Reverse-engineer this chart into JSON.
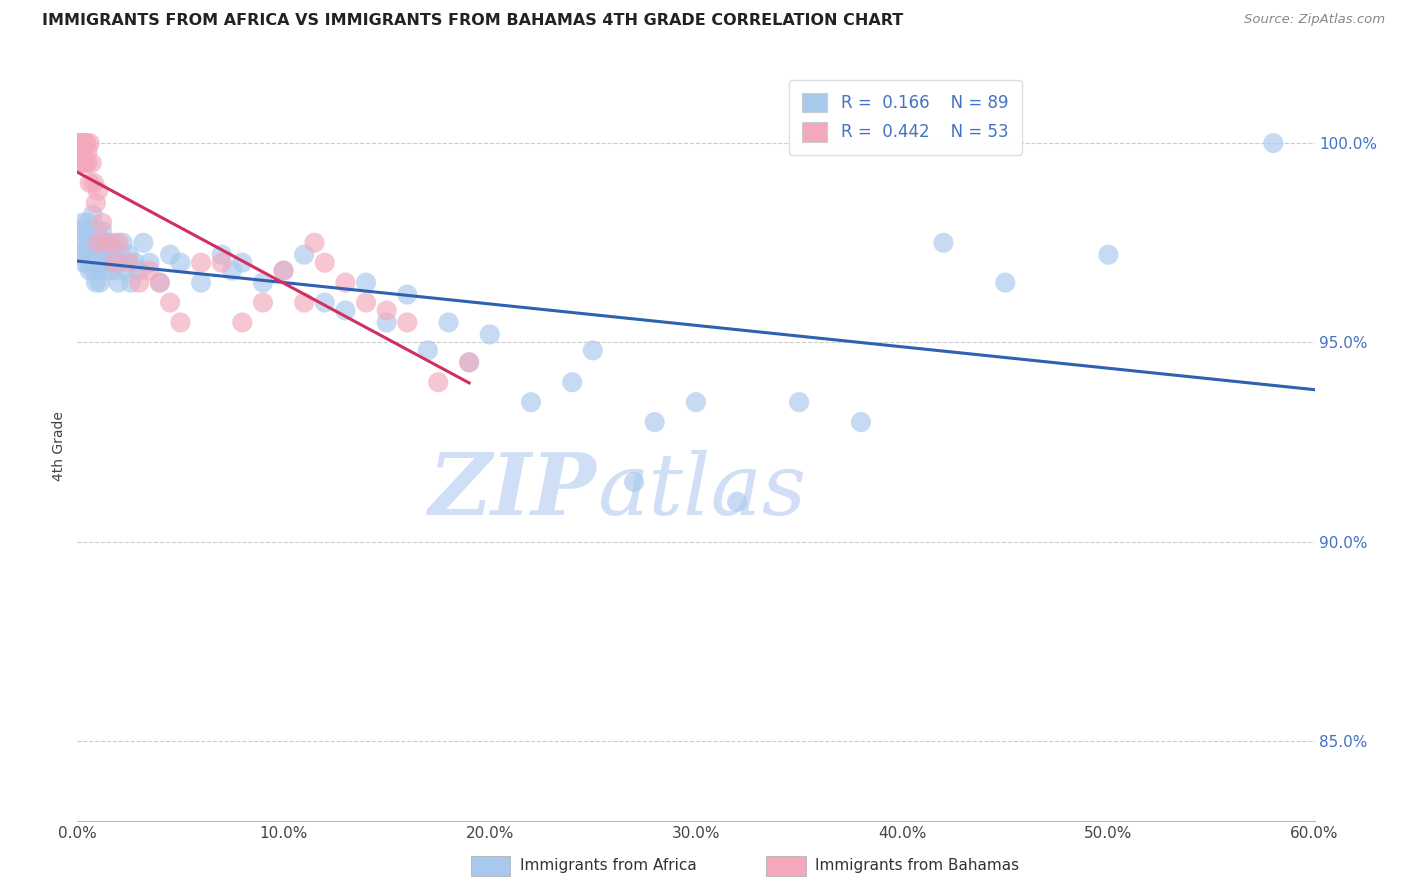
{
  "title": "IMMIGRANTS FROM AFRICA VS IMMIGRANTS FROM BAHAMAS 4TH GRADE CORRELATION CHART",
  "source": "Source: ZipAtlas.com",
  "ylabel": "4th Grade",
  "x_tick_labels": [
    "0.0%",
    "10.0%",
    "20.0%",
    "30.0%",
    "40.0%",
    "50.0%",
    "60.0%"
  ],
  "x_tick_vals": [
    0,
    10,
    20,
    30,
    40,
    50,
    60
  ],
  "y_tick_labels": [
    "85.0%",
    "90.0%",
    "95.0%",
    "100.0%"
  ],
  "y_tick_vals": [
    85,
    90,
    95,
    100
  ],
  "xlim": [
    0,
    60
  ],
  "ylim": [
    83,
    101.8
  ],
  "legend_africa_label": "Immigrants from Africa",
  "legend_bahamas_label": "Immigrants from Bahamas",
  "legend_africa_R_val": "0.166",
  "legend_africa_N_val": "89",
  "legend_bahamas_R_val": "0.442",
  "legend_bahamas_N_val": "53",
  "africa_color": "#A8C8EE",
  "bahamas_color": "#F4A8BC",
  "africa_line_color": "#3060B0",
  "bahamas_line_color": "#D03060",
  "watermark_zip": "ZIP",
  "watermark_atlas": "atlas",
  "watermark_color": "#D0DFF5",
  "background_color": "#FFFFFF",
  "africa_x": [
    0.1,
    0.15,
    0.2,
    0.25,
    0.3,
    0.35,
    0.4,
    0.45,
    0.5,
    0.5,
    0.6,
    0.6,
    0.7,
    0.7,
    0.75,
    0.8,
    0.8,
    0.85,
    0.9,
    0.9,
    0.95,
    1.0,
    1.0,
    1.0,
    1.1,
    1.1,
    1.2,
    1.2,
    1.3,
    1.4,
    1.5,
    1.5,
    1.6,
    1.7,
    1.8,
    1.8,
    2.0,
    2.0,
    2.1,
    2.2,
    2.3,
    2.5,
    2.6,
    2.8,
    3.0,
    3.2,
    3.5,
    4.0,
    4.5,
    5.0,
    6.0,
    7.0,
    7.5,
    8.0,
    9.0,
    10.0,
    11.0,
    12.0,
    13.0,
    14.0,
    15.0,
    16.0,
    17.0,
    18.0,
    19.0,
    20.0,
    22.0,
    24.0,
    25.0,
    27.0,
    28.0,
    30.0,
    32.0,
    35.0,
    38.0,
    42.0,
    45.0,
    50.0,
    58.0
  ],
  "africa_y": [
    97.5,
    97.8,
    97.2,
    98.0,
    97.0,
    97.5,
    97.8,
    97.3,
    97.0,
    98.0,
    97.5,
    96.8,
    97.2,
    97.0,
    98.2,
    97.5,
    96.8,
    97.0,
    97.3,
    96.5,
    97.8,
    97.0,
    97.5,
    96.8,
    97.2,
    96.5,
    97.0,
    97.8,
    97.5,
    97.2,
    96.8,
    97.5,
    97.0,
    97.3,
    96.8,
    97.5,
    97.0,
    96.5,
    97.2,
    97.5,
    96.8,
    97.2,
    96.5,
    97.0,
    96.8,
    97.5,
    97.0,
    96.5,
    97.2,
    97.0,
    96.5,
    97.2,
    96.8,
    97.0,
    96.5,
    96.8,
    97.2,
    96.0,
    95.8,
    96.5,
    95.5,
    96.2,
    94.8,
    95.5,
    94.5,
    95.2,
    93.5,
    94.0,
    94.8,
    91.5,
    93.0,
    93.5,
    91.0,
    93.5,
    93.0,
    97.5,
    96.5,
    97.2,
    100.0
  ],
  "bahamas_x": [
    0.05,
    0.08,
    0.1,
    0.1,
    0.12,
    0.15,
    0.15,
    0.2,
    0.2,
    0.2,
    0.25,
    0.25,
    0.3,
    0.3,
    0.3,
    0.35,
    0.35,
    0.4,
    0.4,
    0.45,
    0.5,
    0.5,
    0.6,
    0.6,
    0.7,
    0.8,
    0.9,
    1.0,
    1.0,
    1.2,
    1.5,
    1.8,
    2.0,
    2.5,
    3.0,
    3.5,
    4.0,
    4.5,
    5.0,
    6.0,
    7.0,
    8.0,
    9.0,
    10.0,
    11.0,
    11.5,
    12.0,
    13.0,
    14.0,
    15.0,
    16.0,
    17.5,
    19.0
  ],
  "bahamas_y": [
    100.0,
    100.0,
    100.0,
    100.0,
    100.0,
    100.0,
    100.0,
    100.0,
    100.0,
    99.5,
    100.0,
    99.8,
    100.0,
    100.0,
    99.5,
    100.0,
    99.8,
    100.0,
    99.5,
    100.0,
    99.5,
    99.8,
    99.0,
    100.0,
    99.5,
    99.0,
    98.5,
    98.8,
    97.5,
    98.0,
    97.5,
    97.0,
    97.5,
    97.0,
    96.5,
    96.8,
    96.5,
    96.0,
    95.5,
    97.0,
    97.0,
    95.5,
    96.0,
    96.8,
    96.0,
    97.5,
    97.0,
    96.5,
    96.0,
    95.8,
    95.5,
    94.0,
    94.5
  ]
}
